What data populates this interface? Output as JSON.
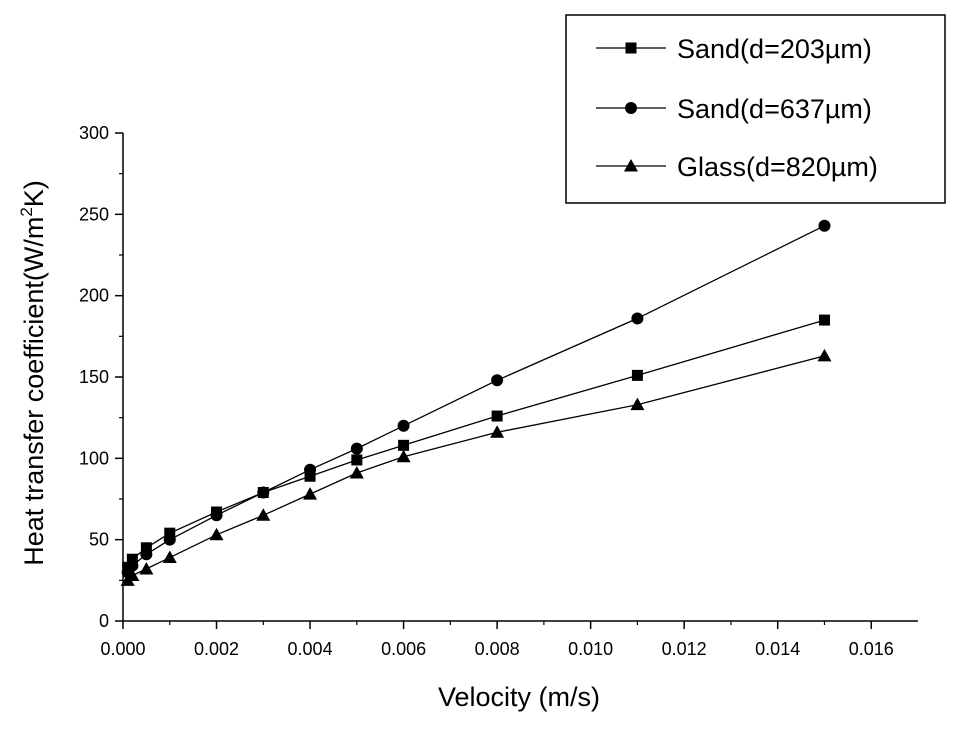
{
  "chart_data": {
    "type": "line",
    "title": "",
    "xlabel": "Velocity (m/s)",
    "ylabel": "Heat transfer coefficient(W/m",
    "ylabel_sup": "2",
    "ylabel_tail": "K)",
    "xlim": [
      0.0,
      0.017
    ],
    "ylim": [
      0,
      300
    ],
    "x_ticks": [
      0.0,
      0.002,
      0.004,
      0.006,
      0.008,
      0.01,
      0.012,
      0.014,
      0.016
    ],
    "x_tick_labels": [
      "0.000",
      "0.002",
      "0.004",
      "0.006",
      "0.008",
      "0.010",
      "0.012",
      "0.014",
      "0.016"
    ],
    "y_ticks": [
      0,
      50,
      100,
      150,
      200,
      250,
      300
    ],
    "y_tick_labels": [
      "0",
      "50",
      "100",
      "150",
      "200",
      "250",
      "300"
    ],
    "grid": false,
    "legend_position": "top-right",
    "series": [
      {
        "name": "Sand(d=203µm)",
        "marker": "square",
        "x": [
          0.0001,
          0.0002,
          0.0005,
          0.001,
          0.002,
          0.003,
          0.004,
          0.005,
          0.006,
          0.008,
          0.011,
          0.015
        ],
        "y": [
          33,
          38,
          45,
          54,
          67,
          79,
          89,
          99,
          108,
          126,
          151,
          185
        ]
      },
      {
        "name": "Sand(d=637µm)",
        "marker": "circle",
        "x": [
          0.0001,
          0.0002,
          0.0005,
          0.001,
          0.002,
          0.003,
          0.004,
          0.005,
          0.006,
          0.008,
          0.011,
          0.015
        ],
        "y": [
          30,
          34,
          41,
          50,
          65,
          79,
          93,
          106,
          120,
          148,
          186,
          243
        ]
      },
      {
        "name": "Glass(d=820µm)",
        "marker": "triangle",
        "x": [
          0.0001,
          0.0002,
          0.0005,
          0.001,
          0.002,
          0.003,
          0.004,
          0.005,
          0.006,
          0.008,
          0.011,
          0.015
        ],
        "y": [
          25,
          28,
          32,
          39,
          53,
          65,
          78,
          91,
          101,
          116,
          133,
          163
        ]
      }
    ]
  }
}
